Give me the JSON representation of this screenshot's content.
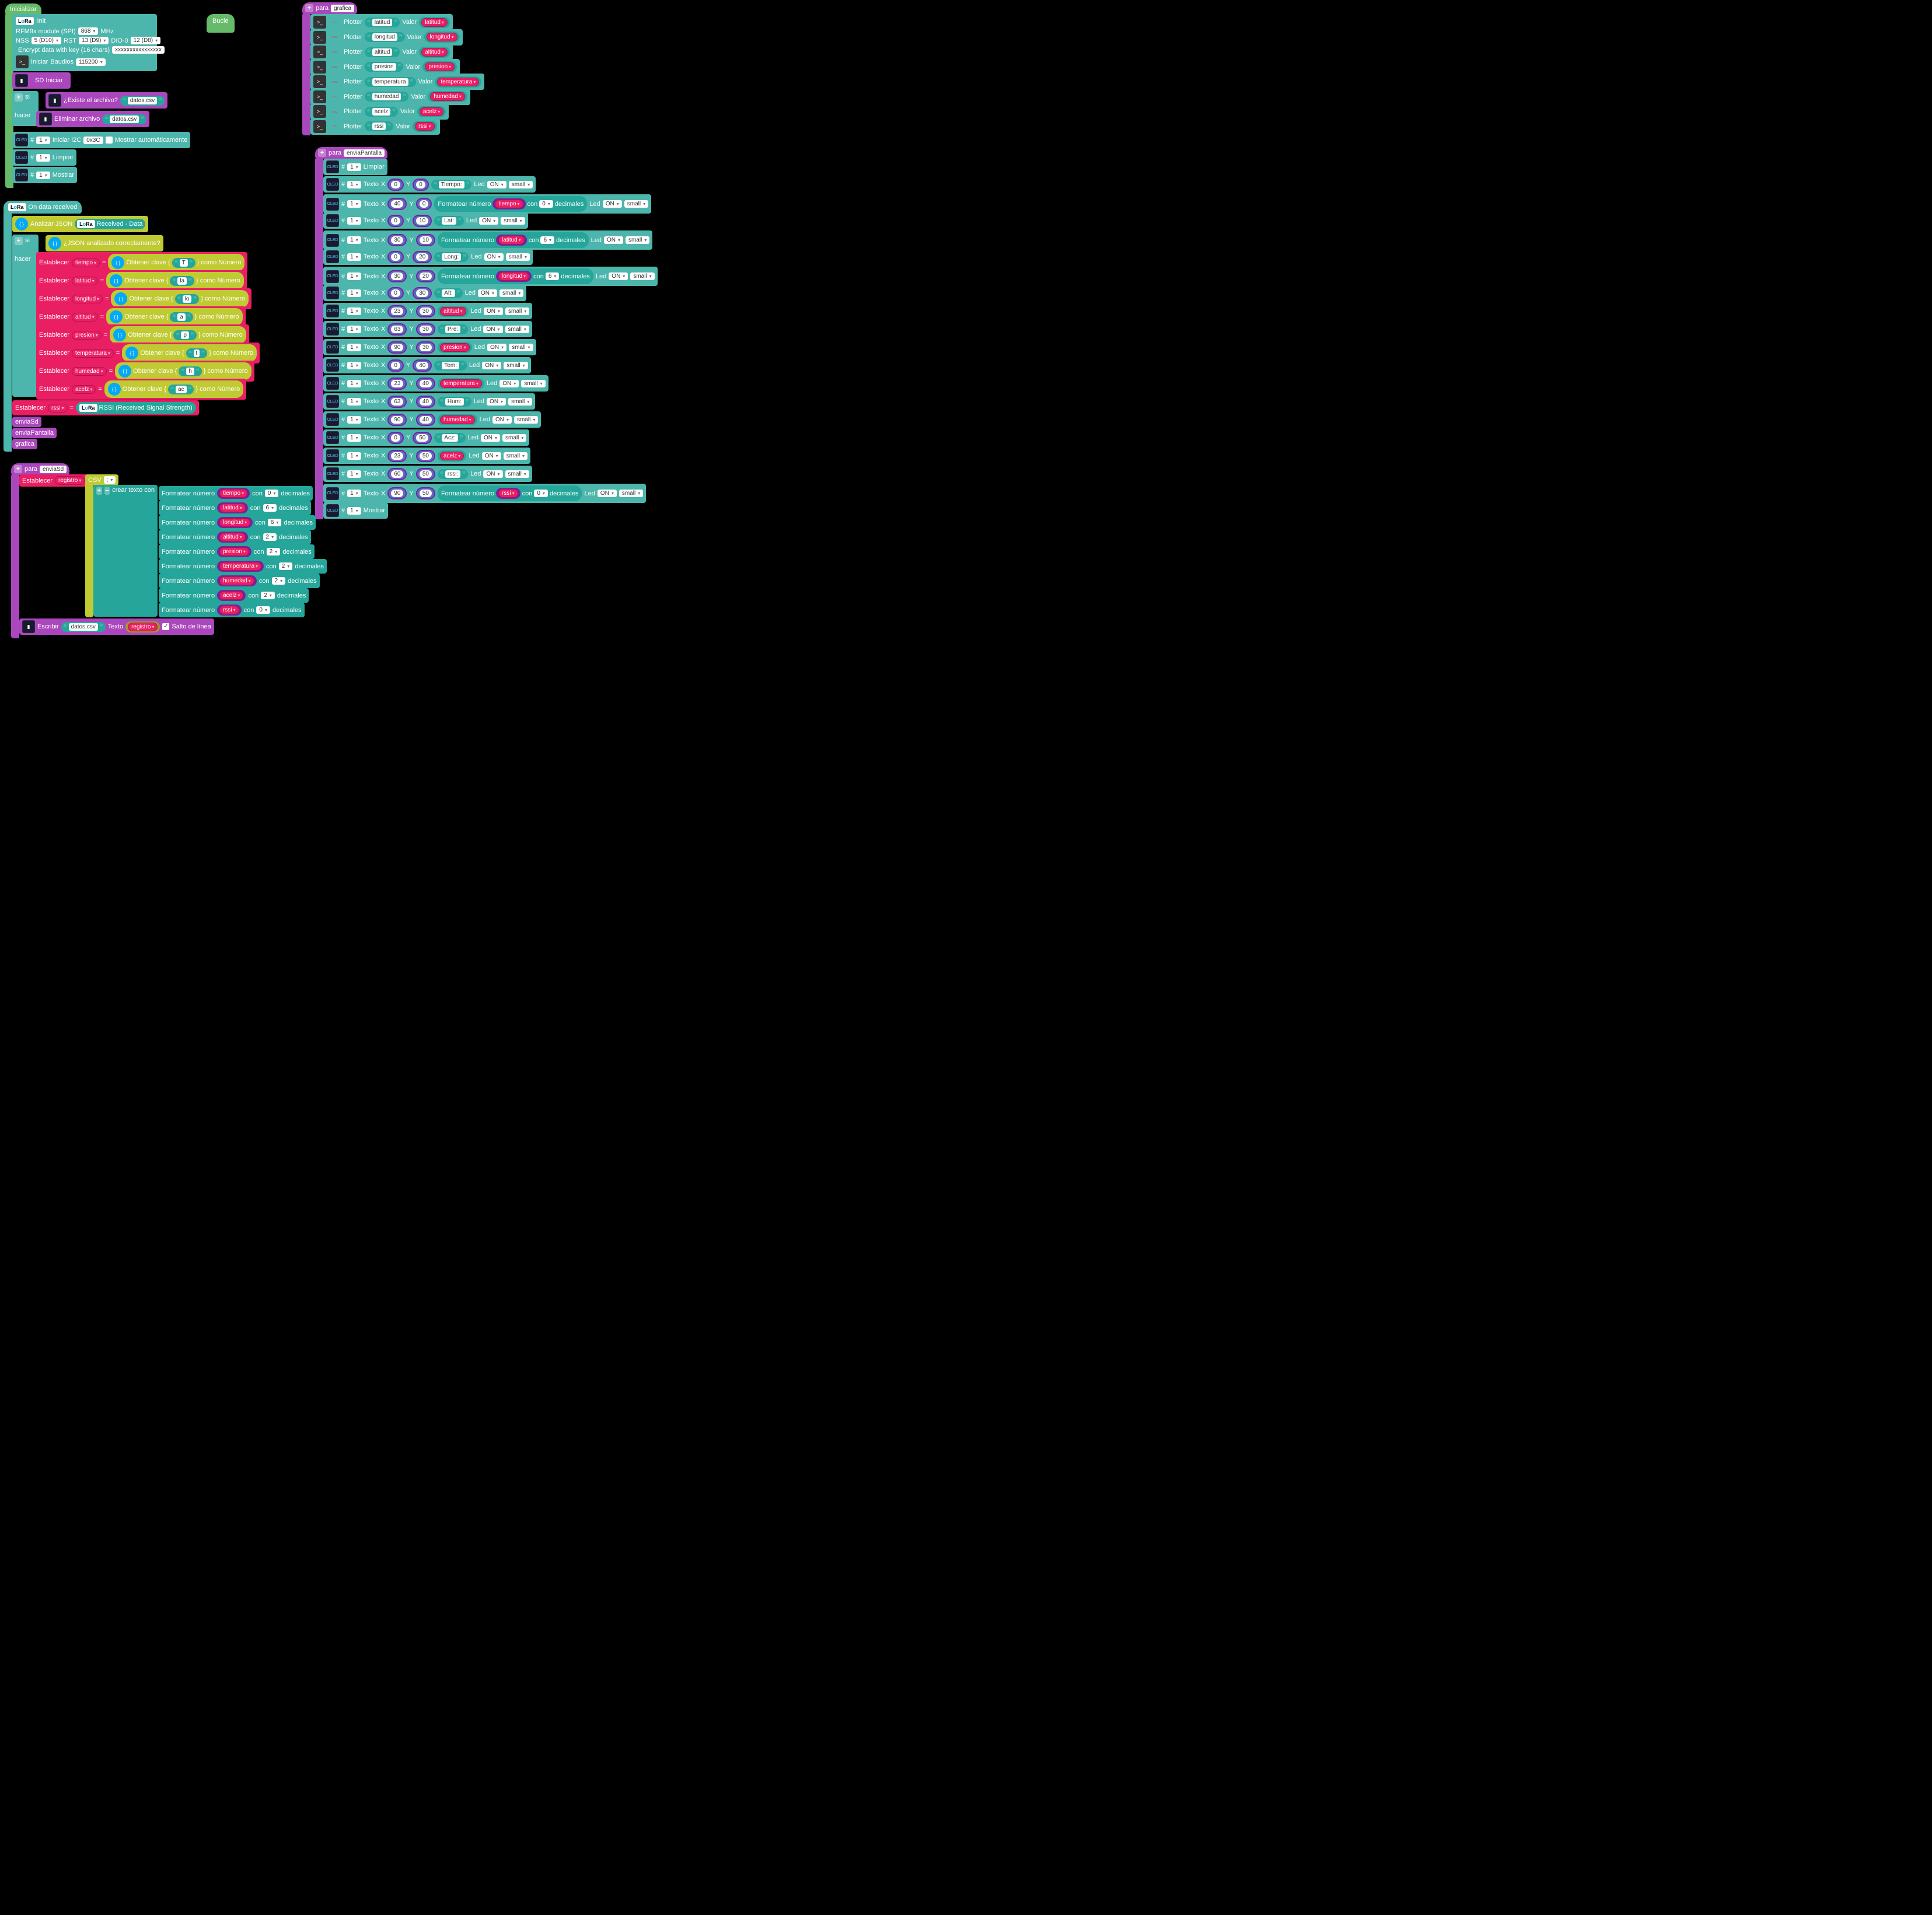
{
  "colors": {
    "bg": "#000000",
    "teal": "#4db6ac",
    "dteal": "#26a69a",
    "purple": "#ab47bc",
    "dpurple": "#8e24aa",
    "olive": "#c0ca33",
    "dolive": "#9e9d24",
    "pink": "#e91e63",
    "green": "#66bb6a",
    "white": "#ffffff"
  },
  "init": {
    "title": "Inicializar",
    "lora": {
      "label": "Init",
      "module": "RFM9x module (SPI)",
      "mhz": "868",
      "mhzUnit": "MHz",
      "nss": "NSS",
      "nssv": "5 (D10)",
      "rst": "RST",
      "rstv": "13 (D9)",
      "dio": "DIO-0",
      "diov": "12 (D8)",
      "encrypt": "Encrypt data with key (16 chars)",
      "key": "xxxxxxxxxxxxxxxx",
      "iniciar": "Iniciar",
      "baud": "Baudios",
      "baudv": "115200"
    },
    "sdIniciar": "SD Iniciar",
    "if": {
      "si": "si",
      "hacer": "hacer",
      "exists": "¿Existe el archivo?",
      "file": "datos.csv",
      "del": "Eliminar archivo"
    },
    "oled1": {
      "hash": "#",
      "n": "1",
      "start": "Iniciar I2C",
      "addr": "0x3C",
      "auto": "Mostrar automáticamente"
    },
    "oled2": {
      "n": "1",
      "clear": "Limpiar"
    },
    "oled3": {
      "n": "1",
      "show": "Mostrar"
    }
  },
  "bucle": "Bucle",
  "onData": {
    "title": "On data received",
    "parse": "Analizar JSON",
    "received": "Received - Data",
    "if": {
      "si": "si",
      "hacer": "hacer",
      "ok": "¿JSON analizado correctamente?"
    },
    "set": "Establecer",
    "eq": "=",
    "get": "Obtener clave {",
    "as": "} como Número",
    "vars": [
      {
        "v": "tiempo",
        "k": "T"
      },
      {
        "v": "latitud",
        "k": "la"
      },
      {
        "v": "longitud",
        "k": "lo"
      },
      {
        "v": "altitud",
        "k": "a"
      },
      {
        "v": "presion",
        "k": "p"
      },
      {
        "v": "temperatura",
        "k": "t"
      },
      {
        "v": "humedad",
        "k": "h"
      },
      {
        "v": "acelz",
        "k": "ac"
      }
    ],
    "rssi": {
      "v": "rssi",
      "label": "RSSI (Received Signal Strength)"
    },
    "calls": [
      "enviaSd",
      "enviaPantalla",
      "grafica"
    ]
  },
  "grafica": {
    "para": "para",
    "name": "grafica",
    "plotter": "Plotter",
    "valor": "Valor",
    "rows": [
      {
        "s": "latitud",
        "v": "latitud"
      },
      {
        "s": "longitud",
        "v": "longitud"
      },
      {
        "s": "altitud",
        "v": "altitud"
      },
      {
        "s": "presion",
        "v": "presion"
      },
      {
        "s": "temperatura",
        "v": "temperatura"
      },
      {
        "s": "humedad",
        "v": "humedad"
      },
      {
        "s": "acelz",
        "v": "acelz"
      },
      {
        "s": "rssi",
        "v": "rssi"
      }
    ]
  },
  "enviaPantalla": {
    "para": "para",
    "name": "enviaPantalla",
    "hash": "#",
    "n": "1",
    "clear": "Limpiar",
    "texto": "Texto",
    "x": "X",
    "y": "Y",
    "led": "Led",
    "on": "ON",
    "small": "small",
    "fmt": "Formatear número",
    "con": "con",
    "dec": "decimales",
    "show": "Mostrar",
    "rows": [
      {
        "t": "text",
        "x": "0",
        "y": "0",
        "s": "Tiempo:"
      },
      {
        "t": "fmt",
        "x": "40",
        "y": "0",
        "v": "tiempo",
        "d": "0"
      },
      {
        "t": "text",
        "x": "0",
        "y": "10",
        "s": "Lat:"
      },
      {
        "t": "fmt",
        "x": "30",
        "y": "10",
        "v": "latitud",
        "d": "6"
      },
      {
        "t": "text",
        "x": "0",
        "y": "20",
        "s": "Long:"
      },
      {
        "t": "fmt",
        "x": "30",
        "y": "20",
        "v": "longitud",
        "d": "6"
      },
      {
        "t": "text",
        "x": "0",
        "y": "30",
        "s": "Alt:"
      },
      {
        "t": "var",
        "x": "23",
        "y": "30",
        "v": "altitud"
      },
      {
        "t": "text",
        "x": "63",
        "y": "30",
        "s": "Pre:"
      },
      {
        "t": "var",
        "x": "90",
        "y": "30",
        "v": "presion"
      },
      {
        "t": "text",
        "x": "0",
        "y": "40",
        "s": "Tem:"
      },
      {
        "t": "var",
        "x": "23",
        "y": "40",
        "v": "temperatura"
      },
      {
        "t": "text",
        "x": "63",
        "y": "40",
        "s": "Hum:"
      },
      {
        "t": "var",
        "x": "90",
        "y": "40",
        "v": "humedad"
      },
      {
        "t": "text",
        "x": "0",
        "y": "50",
        "s": "Acz:"
      },
      {
        "t": "var",
        "x": "23",
        "y": "50",
        "v": "acelz"
      },
      {
        "t": "text",
        "x": "60",
        "y": "50",
        "s": "rssi:"
      },
      {
        "t": "fmt",
        "x": "90",
        "y": "50",
        "v": "rssi",
        "d": "0"
      }
    ]
  },
  "enviaSd": {
    "para": "para",
    "name": "enviaSd",
    "set": "Establecer",
    "reg": "registro",
    "eq": "=",
    "csv": "CSV",
    "sep": ";",
    "crear": "crear texto con",
    "fmt": "Formatear número",
    "con": "con",
    "dec": "decimales",
    "rows": [
      {
        "v": "tiempo",
        "d": "0"
      },
      {
        "v": "latitud",
        "d": "6"
      },
      {
        "v": "longitud",
        "d": "6"
      },
      {
        "v": "altitud",
        "d": "2"
      },
      {
        "v": "presion",
        "d": "2"
      },
      {
        "v": "temperatura",
        "d": "2"
      },
      {
        "v": "humedad",
        "d": "2"
      },
      {
        "v": "acelz",
        "d": "2"
      },
      {
        "v": "rssi",
        "d": "0"
      }
    ],
    "write": "Escribir",
    "file": "datos.csv",
    "texto": "Texto",
    "nl": "Salto de línea"
  }
}
